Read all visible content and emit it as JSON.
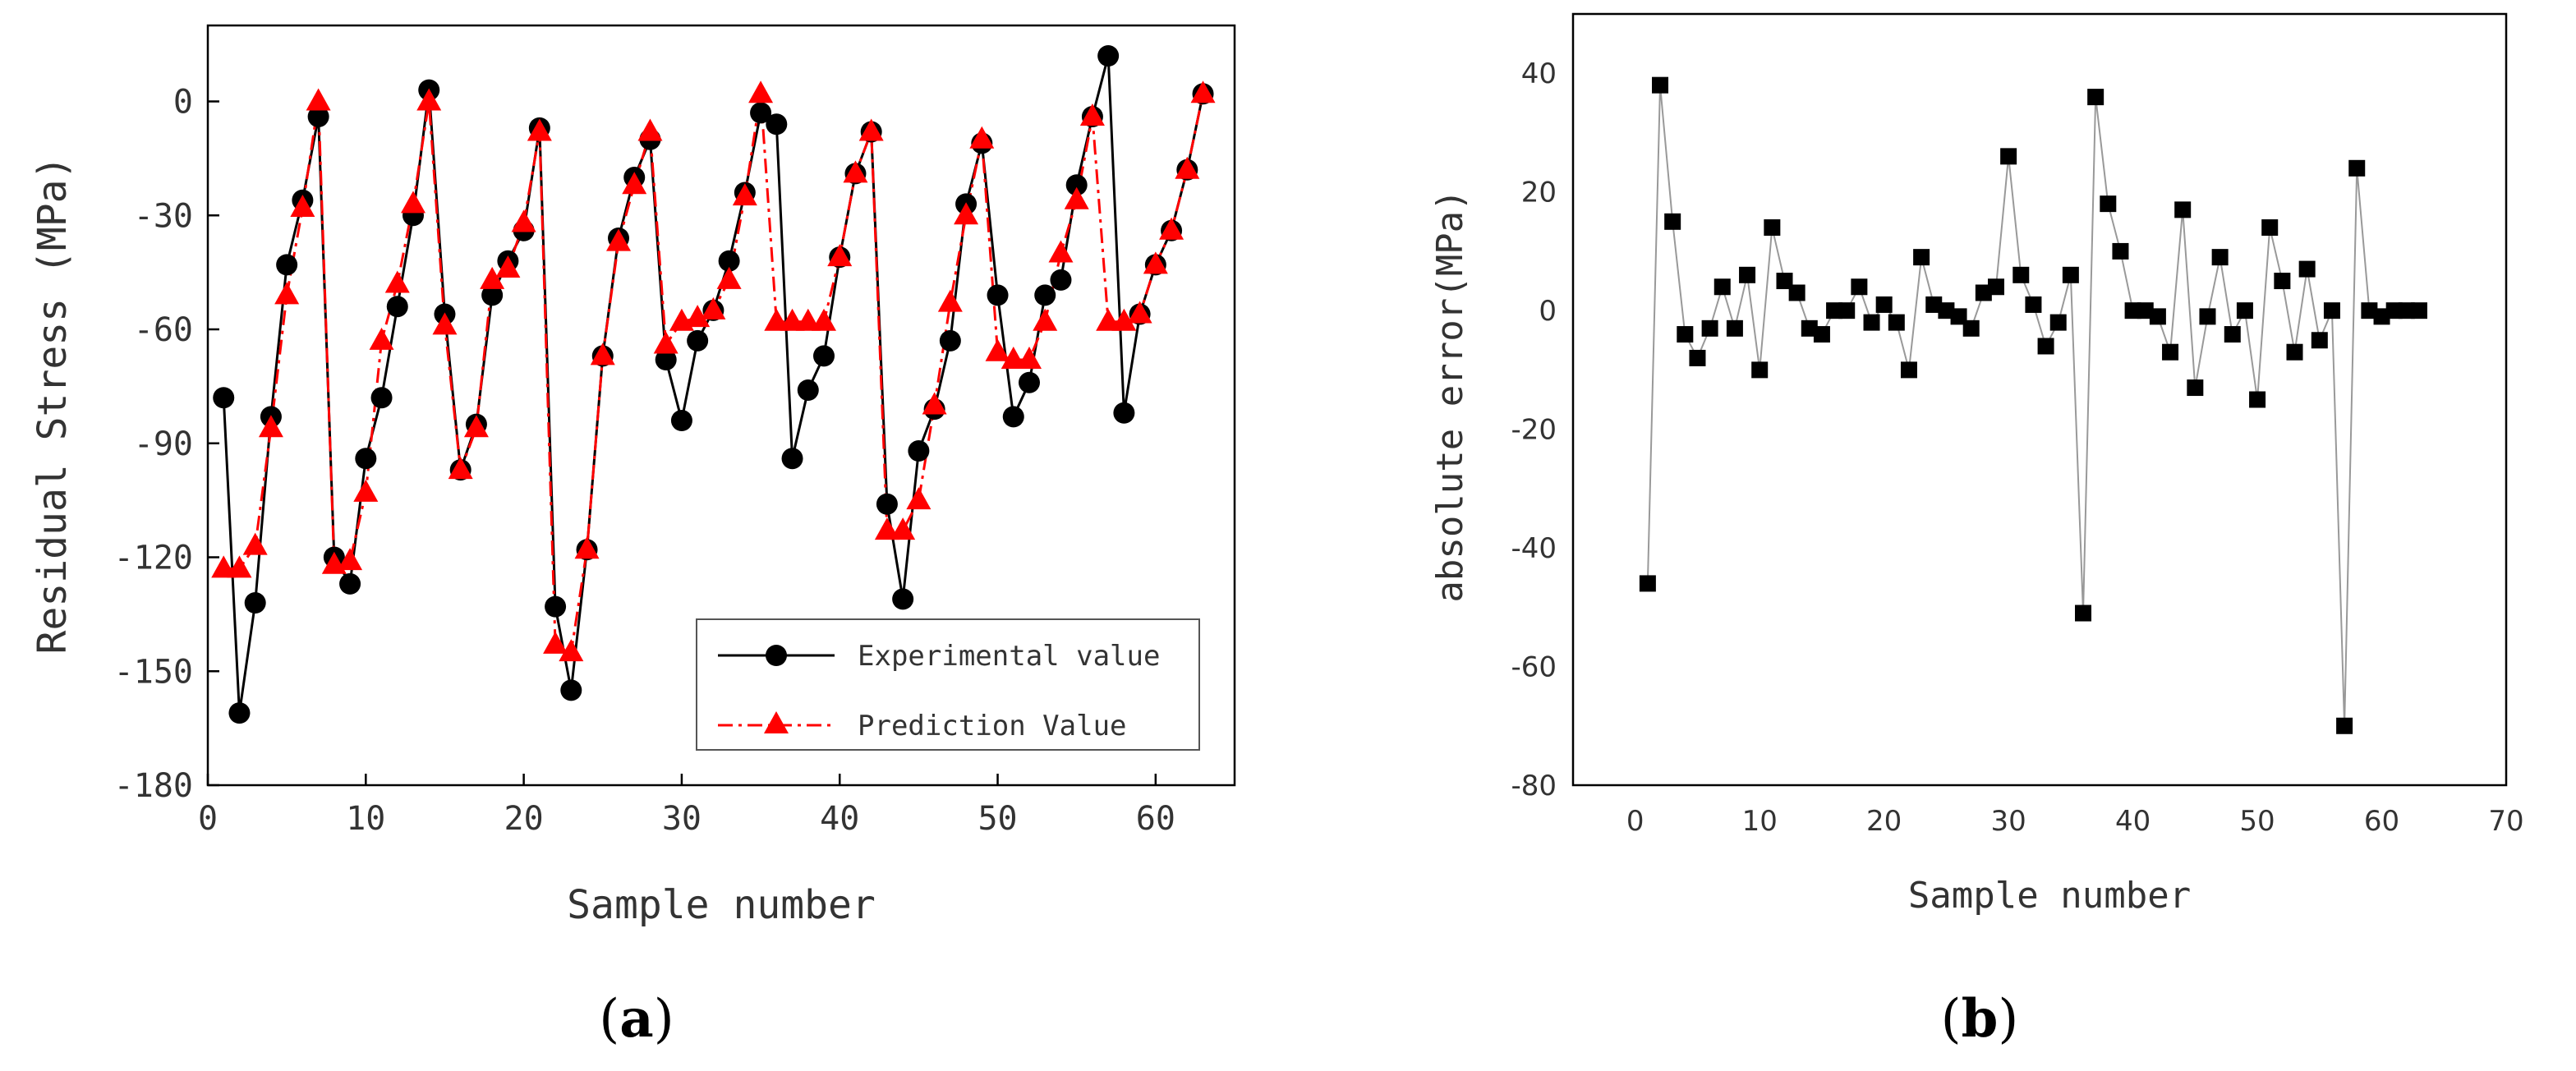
{
  "chart_data": [
    {
      "panel_label": "(a)",
      "panel_letter": "a",
      "type": "line",
      "title": "",
      "xlabel": "Sample number",
      "ylabel": "Residual Stress (MPa)",
      "xlim": [
        0,
        65
      ],
      "ylim": [
        -180,
        20
      ],
      "xticks": [
        0,
        10,
        20,
        30,
        40,
        50,
        60
      ],
      "yticks": [
        0,
        -30,
        -60,
        -90,
        -120,
        -150,
        -180
      ],
      "legend_position": "bottom-right",
      "series": [
        {
          "name": "Experimental value",
          "color": "#000000",
          "marker": "circle",
          "line_style": "solid",
          "x": [
            1,
            2,
            3,
            4,
            5,
            6,
            7,
            8,
            9,
            10,
            11,
            12,
            13,
            14,
            15,
            16,
            17,
            18,
            19,
            20,
            21,
            22,
            23,
            24,
            25,
            26,
            27,
            28,
            29,
            30,
            31,
            32,
            33,
            34,
            35,
            36,
            37,
            38,
            39,
            40,
            41,
            42,
            43,
            44,
            45,
            46,
            47,
            48,
            49,
            50,
            51,
            52,
            53,
            54,
            55,
            56,
            57,
            58,
            59,
            60,
            61,
            62,
            63
          ],
          "values": [
            -78,
            -161,
            -132,
            -83,
            -43,
            -26,
            -4,
            -120,
            -127,
            -94,
            -78,
            -54,
            -30,
            3,
            -56,
            -97,
            -85,
            -51,
            -42,
            -34,
            -7,
            -133,
            -155,
            -118,
            -67,
            -36,
            -20,
            -10,
            -68,
            -84,
            -63,
            -55,
            -42,
            -24,
            -3,
            -6,
            -94,
            -76,
            -67,
            -41,
            -19,
            -8,
            -106,
            -131,
            -92,
            -81,
            -63,
            -27,
            -11,
            -51,
            -83,
            -74,
            -51,
            -47,
            -22,
            -4,
            12,
            -82,
            -56,
            -43,
            -34,
            -18,
            2
          ]
        },
        {
          "name": "Prediction Value",
          "color": "#ff0000",
          "marker": "triangle",
          "line_style": "dash-dot",
          "x": [
            1,
            2,
            3,
            4,
            5,
            6,
            7,
            8,
            9,
            10,
            11,
            12,
            13,
            14,
            15,
            16,
            17,
            18,
            19,
            20,
            21,
            22,
            23,
            24,
            25,
            26,
            27,
            28,
            29,
            30,
            31,
            32,
            33,
            34,
            35,
            36,
            37,
            38,
            39,
            40,
            41,
            42,
            43,
            44,
            45,
            46,
            47,
            48,
            49,
            50,
            51,
            52,
            53,
            54,
            55,
            56,
            57,
            58,
            59,
            60,
            61,
            62,
            63
          ],
          "values": [
            -123,
            -123,
            -117,
            -86,
            -51,
            -28,
            0,
            -122,
            -121,
            -103,
            -63,
            -48,
            -27,
            0,
            -59,
            -97,
            -86,
            -47,
            -44,
            -32,
            -8,
            -143,
            -145,
            -118,
            -67,
            -37,
            -22,
            -8,
            -64,
            -58,
            -57,
            -55,
            -47,
            -25,
            2,
            -58,
            -58,
            -58,
            -58,
            -41,
            -19,
            -8,
            -113,
            -113,
            -105,
            -80,
            -53,
            -30,
            -10,
            -66,
            -68,
            -68,
            -58,
            -40,
            -26,
            -4,
            -58,
            -58,
            -56,
            -43,
            -34,
            -18,
            2
          ]
        }
      ]
    },
    {
      "panel_label": "(b)",
      "panel_letter": "b",
      "type": "line",
      "title": "",
      "xlabel": "Sample number",
      "ylabel": "absolute error(MPa)",
      "xlim": [
        -5,
        70
      ],
      "ylim": [
        -80,
        50
      ],
      "xticks": [
        0,
        10,
        20,
        30,
        40,
        50,
        60,
        70
      ],
      "yticks": [
        40,
        20,
        0,
        -20,
        -40,
        -60,
        -80
      ],
      "series": [
        {
          "name": "absolute error",
          "color": "#000000",
          "line_color": "#999999",
          "marker": "square",
          "x": [
            1,
            2,
            3,
            4,
            5,
            6,
            7,
            8,
            9,
            10,
            11,
            12,
            13,
            14,
            15,
            16,
            17,
            18,
            19,
            20,
            21,
            22,
            23,
            24,
            25,
            26,
            27,
            28,
            29,
            30,
            31,
            32,
            33,
            34,
            35,
            36,
            37,
            38,
            39,
            40,
            41,
            42,
            43,
            44,
            45,
            46,
            47,
            48,
            49,
            50,
            51,
            52,
            53,
            54,
            55,
            56,
            57,
            58,
            59,
            60,
            61,
            62,
            63
          ],
          "values": [
            -46,
            38,
            15,
            -4,
            -8,
            -3,
            4,
            -3,
            6,
            -10,
            14,
            5,
            3,
            -3,
            -4,
            0,
            0,
            4,
            -2,
            1,
            -2,
            -10,
            9,
            1,
            0,
            -1,
            -3,
            3,
            4,
            26,
            6,
            1,
            -6,
            -2,
            6,
            -51,
            36,
            18,
            10,
            0,
            0,
            -1,
            -7,
            17,
            -13,
            -1,
            9,
            -4,
            0,
            -15,
            14,
            5,
            -7,
            7,
            -5,
            0,
            -70,
            24,
            0,
            -1,
            0,
            0,
            0
          ]
        }
      ]
    }
  ]
}
